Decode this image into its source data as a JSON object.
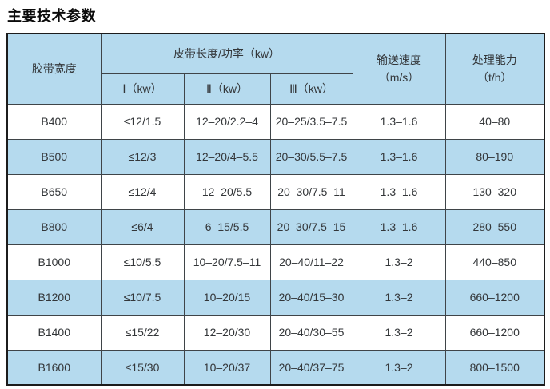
{
  "page": {
    "title": "主要技术参数"
  },
  "table": {
    "header": {
      "belt_width": "胶带宽度",
      "length_power_group": "皮带长度/功率（kw）",
      "sub_columns": [
        "Ⅰ（kw）",
        "Ⅱ（kw）",
        "Ⅲ（kw）"
      ],
      "speed_line1": "输送速度",
      "speed_line2": "（m/s）",
      "capacity_line1": "处理能力",
      "capacity_line2": "（t/h）"
    }
  },
  "chart_data": {
    "type": "table",
    "title": "主要技术参数",
    "columns": [
      "胶带宽度",
      "Ⅰ（kw）",
      "Ⅱ（kw）",
      "Ⅲ（kw）",
      "输送速度（m/s）",
      "处理能力（t/h）"
    ],
    "column_group": "皮带长度/功率（kw）",
    "rows": [
      [
        "B400",
        "≤12/1.5",
        "12–20/2.2–4",
        "20–25/3.5–7.5",
        "1.3–1.6",
        "40–80"
      ],
      [
        "B500",
        "≤12/3",
        "12–20/4–5.5",
        "20–30/5.5–7.5",
        "1.3–1.6",
        "80–190"
      ],
      [
        "B650",
        "≤12/4",
        "12–20/5.5",
        "20–30/7.5–11",
        "1.3–1.6",
        "130–320"
      ],
      [
        "B800",
        "≤6/4",
        "6–15/5.5",
        "20–30/7.5–15",
        "1.3–1.6",
        "280–550"
      ],
      [
        "B1000",
        "≤10/5.5",
        "10–20/7.5–11",
        "20–40/11–22",
        "1.3–2",
        "440–850"
      ],
      [
        "B1200",
        "≤10/7.5",
        "10–20/15",
        "20–40/15–30",
        "1.3–2",
        "660–1200"
      ],
      [
        "B1400",
        "≤15/22",
        "12–20/30",
        "20–40/30–55",
        "1.3–2",
        "660–1200"
      ],
      [
        "B1600",
        "≤15/30",
        "10–20/37",
        "20–40/37–75",
        "1.3–2",
        "800–1500"
      ]
    ]
  },
  "colors": {
    "header_fill": "#b5daee",
    "alt_row_fill": "#b5daee",
    "inner_border": "#3f4448",
    "outer_border": "#1c1c1c",
    "text": "#333639",
    "title_text": "#0b0b0b",
    "background": "#ffffff"
  }
}
